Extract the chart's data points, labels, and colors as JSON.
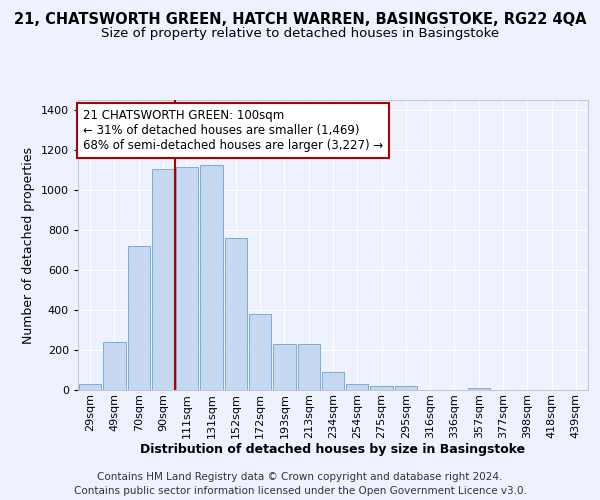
{
  "title": "21, CHATSWORTH GREEN, HATCH WARREN, BASINGSTOKE, RG22 4QA",
  "subtitle": "Size of property relative to detached houses in Basingstoke",
  "xlabel": "Distribution of detached houses by size in Basingstoke",
  "ylabel": "Number of detached properties",
  "footer_line1": "Contains HM Land Registry data © Crown copyright and database right 2024.",
  "footer_line2": "Contains public sector information licensed under the Open Government Licence v3.0.",
  "bar_labels": [
    "29sqm",
    "49sqm",
    "70sqm",
    "90sqm",
    "111sqm",
    "131sqm",
    "152sqm",
    "172sqm",
    "193sqm",
    "213sqm",
    "234sqm",
    "254sqm",
    "275sqm",
    "295sqm",
    "316sqm",
    "336sqm",
    "357sqm",
    "377sqm",
    "398sqm",
    "418sqm",
    "439sqm"
  ],
  "bar_values": [
    30,
    240,
    720,
    1105,
    1115,
    1125,
    760,
    380,
    230,
    230,
    90,
    30,
    22,
    20,
    0,
    0,
    10,
    0,
    0,
    0,
    0
  ],
  "bar_color": "#c5d8f0",
  "bar_edge_color": "#7aadd4",
  "vline_color": "#aa0000",
  "annotation_text": "21 CHATSWORTH GREEN: 100sqm\n← 31% of detached houses are smaller (1,469)\n68% of semi-detached houses are larger (3,227) →",
  "annotation_box_color": "#aa0000",
  "annotation_text_color": "#000000",
  "annotation_bg_color": "#ffffff",
  "ylim": [
    0,
    1450
  ],
  "background_color": "#eef2ff",
  "grid_color": "#ffffff",
  "title_fontsize": 10.5,
  "subtitle_fontsize": 9.5,
  "axis_label_fontsize": 9,
  "tick_fontsize": 8,
  "footer_fontsize": 7.5,
  "annotation_fontsize": 8.5
}
